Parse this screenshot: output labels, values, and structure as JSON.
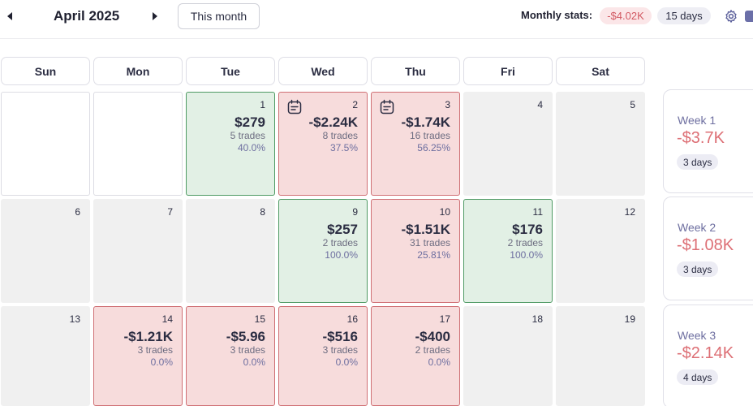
{
  "header": {
    "month": "April 2025",
    "this_month_label": "This month",
    "stats_label": "Monthly stats:",
    "stats_pnl": "-$4.02K",
    "stats_days": "15 days",
    "colors": {
      "win_bg": "#e2f0e5",
      "loss_bg": "#f7dcdc",
      "neg_text": "#dd6f75"
    }
  },
  "weekdays": [
    "Sun",
    "Mon",
    "Tue",
    "Wed",
    "Thu",
    "Fri",
    "Sat"
  ],
  "days": {
    "d1": {
      "num": "1",
      "pnl": "$279",
      "trades": "5 trades",
      "winrate": "40.0%"
    },
    "d2": {
      "num": "2",
      "pnl": "-$2.24K",
      "trades": "8 trades",
      "winrate": "37.5%"
    },
    "d3": {
      "num": "3",
      "pnl": "-$1.74K",
      "trades": "16 trades",
      "winrate": "56.25%"
    },
    "d4": {
      "num": "4"
    },
    "d5": {
      "num": "5"
    },
    "d6": {
      "num": "6"
    },
    "d7": {
      "num": "7"
    },
    "d8": {
      "num": "8"
    },
    "d9": {
      "num": "9",
      "pnl": "$257",
      "trades": "2 trades",
      "winrate": "100.0%"
    },
    "d10": {
      "num": "10",
      "pnl": "-$1.51K",
      "trades": "31 trades",
      "winrate": "25.81%"
    },
    "d11": {
      "num": "11",
      "pnl": "$176",
      "trades": "2 trades",
      "winrate": "100.0%"
    },
    "d12": {
      "num": "12"
    },
    "d13": {
      "num": "13"
    },
    "d14": {
      "num": "14",
      "pnl": "-$1.21K",
      "trades": "3 trades",
      "winrate": "0.0%"
    },
    "d15": {
      "num": "15",
      "pnl": "-$5.96",
      "trades": "3 trades",
      "winrate": "0.0%"
    },
    "d16": {
      "num": "16",
      "pnl": "-$516",
      "trades": "3 trades",
      "winrate": "0.0%"
    },
    "d17": {
      "num": "17",
      "pnl": "-$400",
      "trades": "2 trades",
      "winrate": "0.0%"
    },
    "d18": {
      "num": "18"
    },
    "d19": {
      "num": "19"
    }
  },
  "weeks": [
    {
      "label": "Week 1",
      "pnl": "-$3.7K",
      "days": "3 days"
    },
    {
      "label": "Week 2",
      "pnl": "-$1.08K",
      "days": "3 days"
    },
    {
      "label": "Week 3",
      "pnl": "-$2.14K",
      "days": "4 days"
    }
  ],
  "icons": {
    "prev": "caret-left-icon",
    "next": "caret-right-icon",
    "settings": "gear-icon",
    "note": "notebook-icon",
    "camera": "camera-icon"
  }
}
